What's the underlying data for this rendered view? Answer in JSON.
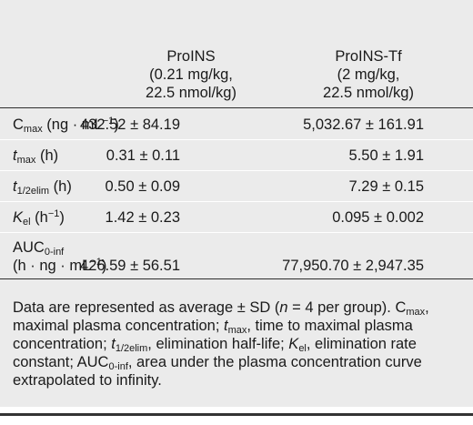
{
  "columns": [
    {
      "name": "ProINS",
      "dose": "(0.21 mg/kg,",
      "molar": "22.5 nmol/kg)"
    },
    {
      "name": "ProINS-Tf",
      "dose": "(2 mg/kg,",
      "molar": "22.5 nmol/kg)"
    }
  ],
  "rows": [
    {
      "param": "Cmax",
      "unit": "(ng · mL−1)",
      "v1": "432.52 ± 84.19",
      "v2": "5,032.67 ± 161.91"
    },
    {
      "param": "tmax",
      "unit": "(h)",
      "v1": "0.31 ± 0.11",
      "v2": "5.50 ± 1.91"
    },
    {
      "param": "t1/2elim",
      "unit": "(h)",
      "v1": "0.50 ± 0.09",
      "v2": "7.29 ± 0.15"
    },
    {
      "param": "Kel",
      "unit": "(h−1)",
      "v1": "1.42 ± 0.23",
      "v2": "0.095 ± 0.002"
    },
    {
      "param": "AUC0-inf",
      "unit": "(h · ng · mL−1)",
      "v1": "426.59 ± 56.51",
      "v2": "77,950.70 ± 2,947.35"
    }
  ],
  "footnote": "Data are represented as average ± SD (n = 4 per group). Cmax, maximal plasma concentration; tmax, time to maximal plasma concentration; t1/2elim, elimination half-life; Kel, elimination rate constant; AUC0-inf, area under the plasma concentration curve extrapolated to infinity.",
  "footnote_parts": {
    "a": "Data are represented as average ± SD (",
    "n": "n",
    "b": " = 4 per group). ",
    "c": "C",
    "cmax_sub": "max",
    "d": ", maximal plasma concentration; ",
    "t": "t",
    "tmax_sub": "max",
    "e": ", time to maximal plasma concentration; ",
    "t2": "t",
    "thalf_sub": "1/2elim",
    "f": ", elimination half-life; ",
    "k": "K",
    "kel_sub": "el",
    "g": ", elimination rate constant; AUC",
    "auc_sub": "0-inf",
    "h": ", area under the plasma concentration curve extrapolated to infinity."
  },
  "labels": {
    "cmax_base": "C",
    "cmax_sub": "max",
    "cmax_unit_a": " (ng · mL",
    "cmax_sup": "−1",
    "cmax_unit_b": ")",
    "tmax_base": "t",
    "tmax_sub": "max",
    "tmax_unit": " (h)",
    "thalf_base": "t",
    "thalf_sub": "1/2elim",
    "thalf_unit": " (h)",
    "kel_base": "K",
    "kel_sub": "el",
    "kel_unit_a": " (h",
    "kel_sup": "−1",
    "kel_unit_b": ")",
    "auc_base": "AUC",
    "auc_sub": "0-inf",
    "auc_unit_a": "(h · ng · mL",
    "auc_sup": "−1",
    "auc_unit_b": ")"
  }
}
